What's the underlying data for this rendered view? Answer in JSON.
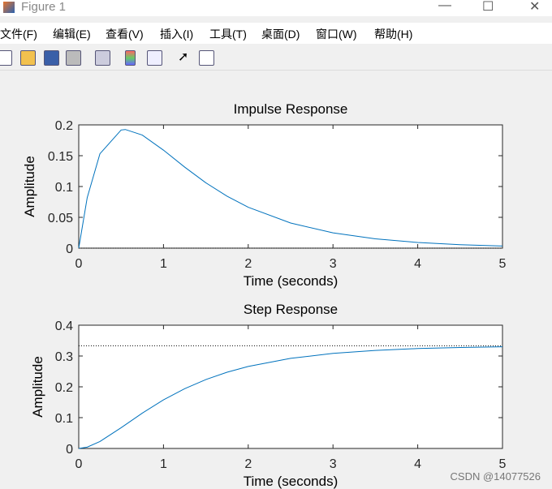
{
  "window": {
    "title": "Figure 1",
    "menu": [
      "文件(F)",
      "编辑(E)",
      "查看(V)",
      "插入(I)",
      "工具(T)",
      "桌面(D)",
      "窗口(W)",
      "帮助(H)"
    ],
    "watermark": "CSDN @14077526"
  },
  "chart_data": [
    {
      "type": "line",
      "title": "Impulse Response",
      "xlabel": "Time (seconds)",
      "ylabel": "Amplitude",
      "x": [
        0,
        0.1,
        0.25,
        0.5,
        0.55,
        0.75,
        1,
        1.25,
        1.5,
        1.75,
        2,
        2.5,
        3,
        3.5,
        4,
        4.5,
        5
      ],
      "values": [
        0,
        0.082,
        0.1532,
        0.1917,
        0.1925,
        0.1835,
        0.159,
        0.1315,
        0.106,
        0.0843,
        0.0664,
        0.0408,
        0.0248,
        0.0151,
        0.0092,
        0.0056,
        0.0034
      ],
      "color": "#0072bd",
      "steady_state": 0,
      "xlim": [
        0,
        5
      ],
      "xticks": [
        0,
        1,
        2,
        3,
        4,
        5
      ],
      "ylim": [
        0,
        0.2
      ],
      "yticks": [
        0,
        0.05,
        0.1,
        0.15,
        0.2
      ]
    },
    {
      "type": "line",
      "title": "Step Response",
      "xlabel": "Time (seconds)",
      "ylabel": "Amplitude",
      "x": [
        0,
        0.1,
        0.25,
        0.5,
        0.75,
        1,
        1.25,
        1.5,
        1.75,
        2,
        2.5,
        3,
        3.5,
        4,
        4.5,
        5
      ],
      "values": [
        0,
        0.0044,
        0.0226,
        0.0672,
        0.1147,
        0.1577,
        0.1939,
        0.2236,
        0.2473,
        0.266,
        0.2924,
        0.3084,
        0.3182,
        0.3242,
        0.3278,
        0.33
      ],
      "color": "#0072bd",
      "steady_state": 0.3333,
      "xlim": [
        0,
        5
      ],
      "xticks": [
        0,
        1,
        2,
        3,
        4,
        5
      ],
      "ylim": [
        0,
        0.4
      ],
      "yticks": [
        0,
        0.1,
        0.2,
        0.3,
        0.4
      ]
    }
  ]
}
